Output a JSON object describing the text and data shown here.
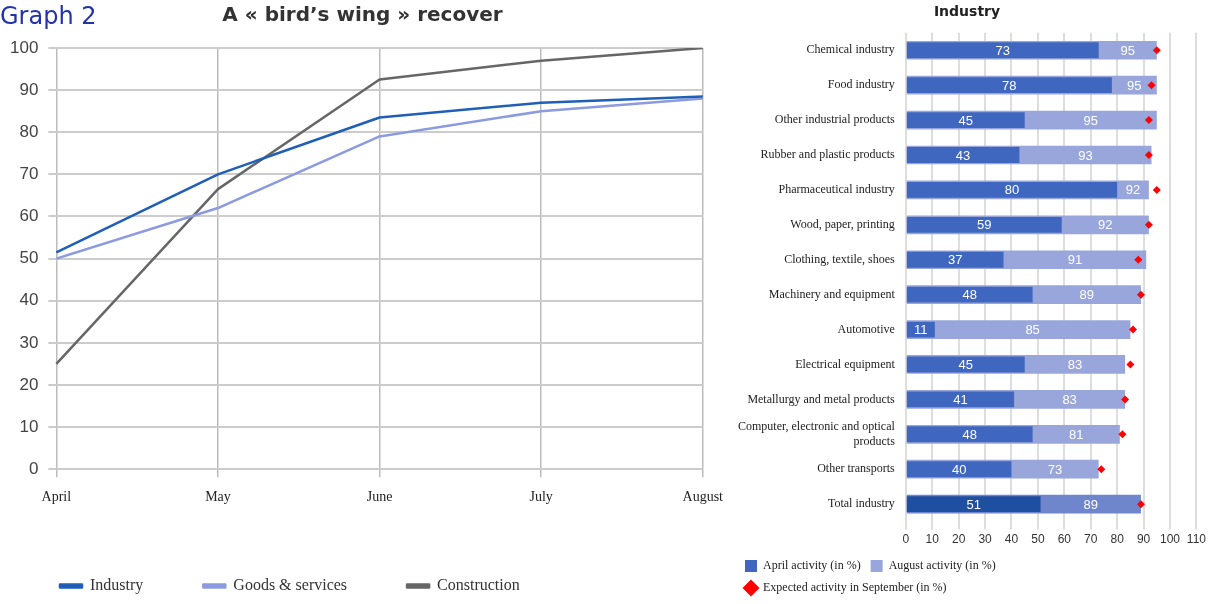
{
  "chart_data": [
    {
      "type": "line",
      "title": "A « bird’s wing » recover",
      "annotations": [
        "Graph 2"
      ],
      "categories": [
        "April",
        "May",
        "June",
        "July",
        "August"
      ],
      "series": [
        {
          "name": "Industry",
          "color": "#1f5fb8",
          "values": [
            51.5,
            70,
            83.5,
            87,
            88.5
          ]
        },
        {
          "name": "Goods & services",
          "color": "#8c9be0",
          "values": [
            50,
            62,
            79,
            85,
            88
          ]
        },
        {
          "name": "Construction",
          "color": "#666666",
          "values": [
            25,
            66.5,
            92.5,
            97,
            100
          ]
        }
      ],
      "ylim": [
        0,
        100
      ],
      "yticks": [
        0,
        10,
        20,
        30,
        40,
        50,
        60,
        70,
        80,
        90,
        100
      ],
      "grid": true,
      "legend": "bottom",
      "marker": "none",
      "line_style": "solid"
    },
    {
      "type": "bar",
      "title": "Industry",
      "orientation": "horizontal",
      "categories": [
        "Chemical industry",
        "Food industry",
        "Other industrial products",
        "Rubber and plastic products",
        "Pharmaceutical industry",
        "Wood, paper, printing",
        "Clothing, textile, shoes",
        "Machinery and equipment",
        "Automotive",
        "Electrical equipment",
        "Metallurgy and metal products",
        "Computer, electronic and optical products",
        "Other transports",
        "Total industry"
      ],
      "series": [
        {
          "name": "April activity (in %)",
          "color": "#3f67c0",
          "colors": [
            "#3f67c0",
            "#3f67c0",
            "#3f67c0",
            "#3f67c0",
            "#3f67c0",
            "#3f67c0",
            "#3f67c0",
            "#3f67c0",
            "#3f67c0",
            "#3f67c0",
            "#3f67c0",
            "#3f67c0",
            "#3f67c0",
            "#1f4fa0"
          ],
          "values": [
            73,
            78,
            45,
            43,
            80,
            59,
            37,
            48,
            11,
            45,
            41,
            48,
            40,
            51
          ],
          "value_labels": [
            "73",
            "78",
            "45",
            "43",
            "80",
            "59",
            "37",
            "48",
            "11",
            "45",
            "41",
            "48",
            "40",
            "51"
          ]
        },
        {
          "name": "August activity (in %)",
          "color": "#98a6dc",
          "colors": [
            "#98a6dc",
            "#98a6dc",
            "#98a6dc",
            "#98a6dc",
            "#98a6dc",
            "#98a6dc",
            "#98a6dc",
            "#98a6dc",
            "#98a6dc",
            "#98a6dc",
            "#98a6dc",
            "#98a6dc",
            "#98a6dc",
            "#6f86cc"
          ],
          "values": [
            95,
            95,
            95,
            93,
            92,
            92,
            91,
            89,
            85,
            83,
            83,
            81,
            73,
            89
          ],
          "value_labels": [
            "95",
            "95",
            "95",
            "93",
            "92",
            "92",
            "91",
            "89",
            "85",
            "83",
            "83",
            "81",
            "73",
            "89"
          ]
        },
        {
          "name": "Expected activity in September (in %)",
          "type": "scatter",
          "marker": "diamond",
          "color": "#ff0000",
          "values": [
            95,
            93,
            92,
            92,
            95,
            92,
            88,
            89,
            86,
            85,
            83,
            82,
            74,
            89
          ]
        }
      ],
      "xlim": [
        0,
        110
      ],
      "xticks": [
        0,
        10,
        20,
        30,
        40,
        50,
        60,
        70,
        80,
        90,
        100,
        110
      ],
      "grid": "x",
      "legend": "bottom"
    }
  ]
}
